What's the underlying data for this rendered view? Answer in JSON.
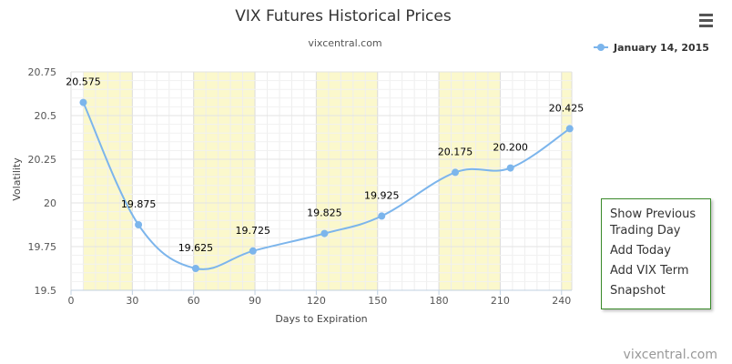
{
  "chart_data": {
    "type": "line",
    "title": "VIX Futures Historical Prices",
    "subtitle": "vixcentral.com",
    "xlabel": "Days to Expiration",
    "ylabel": "Volatility",
    "xlim": [
      0,
      245
    ],
    "ylim": [
      19.5,
      20.75
    ],
    "x_ticks": [
      0,
      30,
      60,
      90,
      120,
      150,
      180,
      210,
      240
    ],
    "y_ticks": [
      "19.5",
      "19.75",
      "20",
      "20.25",
      "20.5",
      "20.75"
    ],
    "grid": true,
    "plot_bands": [
      [
        6,
        30
      ],
      [
        60,
        90
      ],
      [
        120,
        150
      ],
      [
        180,
        210
      ],
      [
        240,
        245
      ]
    ],
    "legend_position": "top-right",
    "series": [
      {
        "name": "January 14, 2015",
        "color": "#7cb5ec",
        "x": [
          6,
          33,
          61,
          89,
          124,
          152,
          188,
          215,
          244
        ],
        "y": [
          20.575,
          19.875,
          19.625,
          19.725,
          19.825,
          19.925,
          20.175,
          20.2,
          20.425
        ],
        "labels": [
          "20.575",
          "19.875",
          "19.625",
          "19.725",
          "19.825",
          "19.925",
          "20.175",
          "20.200",
          "20.425"
        ]
      }
    ]
  },
  "credit": "vixcentral.com",
  "menu": {
    "icon": "hamburger-icon",
    "items": [
      "Show Previous Trading Day",
      "Add Today",
      "Add VIX Term",
      "Snapshot"
    ]
  },
  "colors": {
    "band": "#fbf8cc",
    "grid": "#e3e3e3",
    "menu_border": "#3a8a2a"
  }
}
